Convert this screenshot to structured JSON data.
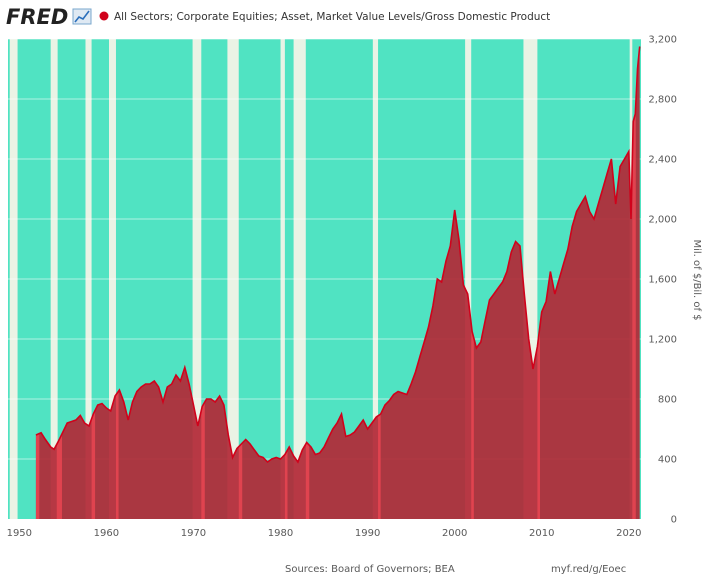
{
  "header": {
    "brand": "FRED",
    "series_title": "All Sectors; Corporate Equities; Asset, Market Value Levels/Gross Domestic Product"
  },
  "footer": {
    "sources": "Sources: Board of Governors; BEA",
    "link": "myf.red/g/Eoec"
  },
  "colors": {
    "plot_background": "#50e3c2",
    "recession_band": "#eaf3e5",
    "line": "#d0021b",
    "area_fill": "#b22836",
    "highlight_band": "#e0434f",
    "text": "#595959"
  },
  "chart_data": {
    "type": "area",
    "title": "All Sectors; Corporate Equities; Asset, Market Value Levels/Gross Domestic Product",
    "ylabel": "Mil. of $/Bil. of $",
    "xlabel": "",
    "xlim": [
      1948.7,
      2021.4
    ],
    "ylim": [
      0,
      3200
    ],
    "x_ticks": [
      "1950",
      "1960",
      "1970",
      "1980",
      "1990",
      "2000",
      "2010",
      "2020"
    ],
    "y_ticks": [
      "0",
      "400",
      "800",
      "1,200",
      "1,600",
      "2,000",
      "2,400",
      "2,800",
      "3,200"
    ],
    "grid": "horizontal",
    "recession_bands": [
      [
        1948.9,
        1949.8
      ],
      [
        1953.6,
        1954.4
      ],
      [
        1957.6,
        1958.3
      ],
      [
        1960.3,
        1961.1
      ],
      [
        1969.9,
        1970.9
      ],
      [
        1973.9,
        1975.2
      ],
      [
        1980.0,
        1980.5
      ],
      [
        1981.5,
        1982.9
      ],
      [
        1990.6,
        1991.2
      ],
      [
        2001.2,
        2001.9
      ],
      [
        2007.9,
        2009.5
      ],
      [
        2020.1,
        2020.4
      ]
    ],
    "highlight_bands": [
      [
        1951.9,
        1952.3
      ],
      [
        1954.3,
        1954.9
      ],
      [
        1958.3,
        1958.7
      ],
      [
        1961.1,
        1961.4
      ],
      [
        1970.9,
        1971.3
      ],
      [
        1975.2,
        1975.6
      ],
      [
        1980.5,
        1980.8
      ],
      [
        1982.9,
        1983.3
      ],
      [
        1991.2,
        1991.5
      ],
      [
        2001.9,
        2002.2
      ],
      [
        2009.5,
        2009.8
      ],
      [
        2020.4,
        2020.8
      ]
    ],
    "series": [
      {
        "x": [
          1951.9,
          1952.5,
          1953.0,
          1953.6,
          1954.0,
          1954.5,
          1955.0,
          1955.5,
          1956.0,
          1956.5,
          1957.0,
          1957.5,
          1958.0,
          1958.5,
          1959.0,
          1959.5,
          1960.0,
          1960.5,
          1961.0,
          1961.5,
          1962.0,
          1962.5,
          1963.0,
          1963.5,
          1964.0,
          1964.5,
          1965.0,
          1965.5,
          1966.0,
          1966.5,
          1967.0,
          1967.5,
          1968.0,
          1968.5,
          1969.0,
          1969.5,
          1970.0,
          1970.5,
          1971.0,
          1971.5,
          1972.0,
          1972.5,
          1973.0,
          1973.5,
          1974.0,
          1974.5,
          1975.0,
          1975.5,
          1976.0,
          1976.5,
          1977.0,
          1977.5,
          1978.0,
          1978.5,
          1979.0,
          1979.5,
          1980.0,
          1980.5,
          1981.0,
          1981.5,
          1982.0,
          1982.5,
          1983.0,
          1983.5,
          1984.0,
          1984.5,
          1985.0,
          1985.5,
          1986.0,
          1986.5,
          1987.0,
          1987.5,
          1988.0,
          1988.5,
          1989.0,
          1989.5,
          1990.0,
          1990.5,
          1991.0,
          1991.5,
          1992.0,
          1992.5,
          1993.0,
          1993.5,
          1994.0,
          1994.5,
          1995.0,
          1995.5,
          1996.0,
          1996.5,
          1997.0,
          1997.5,
          1998.0,
          1998.5,
          1999.0,
          1999.5,
          2000.0,
          2000.5,
          2001.0,
          2001.5,
          2002.0,
          2002.5,
          2003.0,
          2003.5,
          2004.0,
          2004.5,
          2005.0,
          2005.5,
          2006.0,
          2006.5,
          2007.0,
          2007.5,
          2008.0,
          2008.5,
          2009.0,
          2009.5,
          2010.0,
          2010.5,
          2011.0,
          2011.5,
          2012.0,
          2012.5,
          2013.0,
          2013.5,
          2014.0,
          2014.5,
          2015.0,
          2015.5,
          2016.0,
          2016.5,
          2017.0,
          2017.5,
          2018.0,
          2018.5,
          2019.0,
          2019.5,
          2020.0,
          2020.25,
          2020.5,
          2020.75,
          2021.0,
          2021.25
        ],
        "values": [
          560,
          575,
          530,
          480,
          465,
          520,
          580,
          640,
          650,
          660,
          690,
          640,
          620,
          700,
          760,
          770,
          740,
          720,
          820,
          860,
          780,
          660,
          780,
          850,
          880,
          900,
          900,
          920,
          880,
          780,
          880,
          900,
          960,
          920,
          1010,
          900,
          760,
          620,
          750,
          800,
          800,
          780,
          820,
          760,
          560,
          410,
          470,
          500,
          530,
          500,
          460,
          420,
          410,
          380,
          400,
          410,
          400,
          430,
          480,
          420,
          380,
          460,
          510,
          480,
          430,
          440,
          480,
          540,
          600,
          640,
          700,
          550,
          560,
          580,
          620,
          660,
          600,
          640,
          680,
          700,
          760,
          790,
          830,
          850,
          840,
          830,
          900,
          980,
          1080,
          1180,
          1280,
          1420,
          1600,
          1580,
          1720,
          1820,
          2060,
          1860,
          1560,
          1500,
          1250,
          1140,
          1180,
          1320,
          1460,
          1500,
          1540,
          1580,
          1650,
          1780,
          1850,
          1820,
          1500,
          1200,
          1000,
          1150,
          1380,
          1450,
          1650,
          1500,
          1600,
          1700,
          1800,
          1950,
          2050,
          2100,
          2150,
          2050,
          2000,
          2100,
          2200,
          2300,
          2400,
          2100,
          2350,
          2400,
          2450,
          2000,
          2650,
          2700,
          3000,
          3150
        ]
      }
    ]
  }
}
